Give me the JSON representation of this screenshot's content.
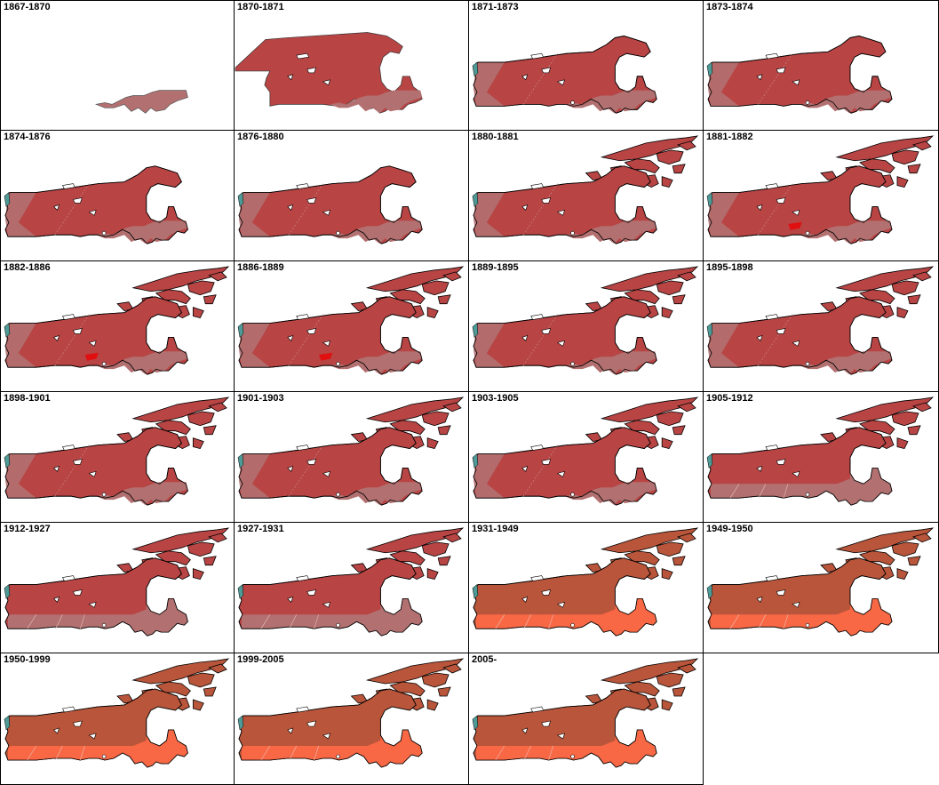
{
  "title": "",
  "colors": {
    "dark_red": "#b84444",
    "pink": "#b27070",
    "dark_orange": "#b8553a",
    "orange": "#f96845",
    "teal": "#4d9a96",
    "outline": "#000000",
    "background": "#ffffff"
  },
  "panels": [
    {
      "label": "1867-1870",
      "stage": "confed"
    },
    {
      "label": "1870-1871",
      "stage": "rupert"
    },
    {
      "label": "1871-1873",
      "stage": "bc"
    },
    {
      "label": "1873-1874",
      "stage": "bc"
    },
    {
      "label": "1874-1876",
      "stage": "bc"
    },
    {
      "label": "1876-1880",
      "stage": "bc"
    },
    {
      "label": "1880-1881",
      "stage": "arctic"
    },
    {
      "label": "1881-1882",
      "stage": "arctic_red"
    },
    {
      "label": "1882-1886",
      "stage": "arctic_red"
    },
    {
      "label": "1886-1889",
      "stage": "arctic_red"
    },
    {
      "label": "1889-1895",
      "stage": "arctic"
    },
    {
      "label": "1895-1898",
      "stage": "arctic"
    },
    {
      "label": "1898-1901",
      "stage": "arctic"
    },
    {
      "label": "1901-1903",
      "stage": "arctic"
    },
    {
      "label": "1903-1905",
      "stage": "arctic"
    },
    {
      "label": "1905-1912",
      "stage": "prairie"
    },
    {
      "label": "1912-1927",
      "stage": "prairie_full"
    },
    {
      "label": "1927-1931",
      "stage": "prairie_full"
    },
    {
      "label": "1931-1949",
      "stage": "orange"
    },
    {
      "label": "1949-1950",
      "stage": "orange_nf"
    },
    {
      "label": "1950-1999",
      "stage": "orange_nf"
    },
    {
      "label": "1999-2005",
      "stage": "orange_nf"
    },
    {
      "label": "2005-",
      "stage": "orange_nf"
    }
  ]
}
